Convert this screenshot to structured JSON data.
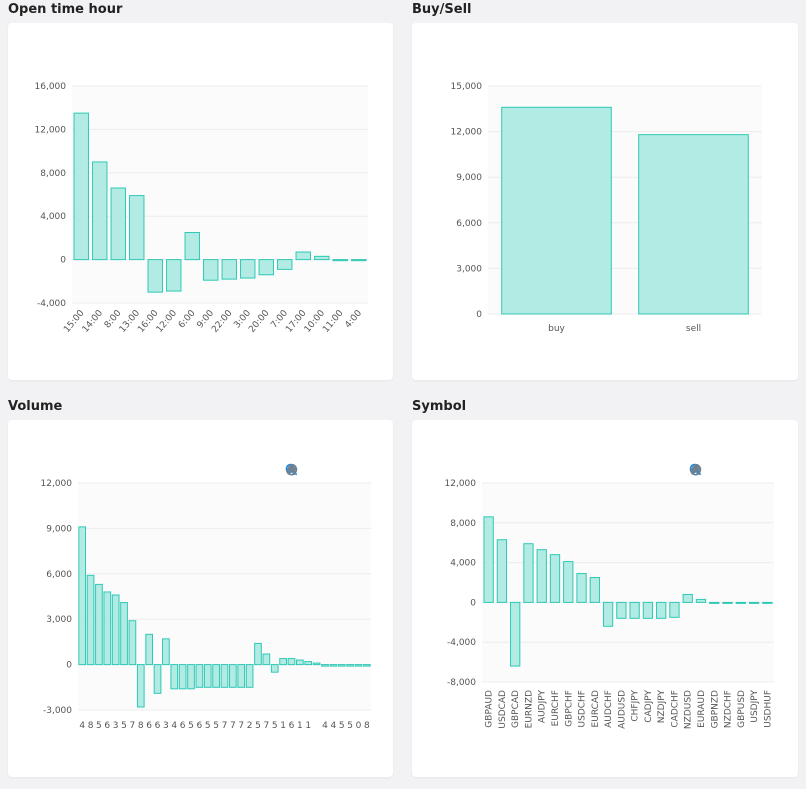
{
  "panels": [
    {
      "title": "Open time hour"
    },
    {
      "title": "Buy/Sell"
    },
    {
      "title": "Volume"
    },
    {
      "title": "Symbol"
    }
  ],
  "toolbar_icons": [
    "zoom-in-icon",
    "zoom-out-icon",
    "zoom-select-icon",
    "pan-icon",
    "home-icon"
  ],
  "colors": {
    "bar_fill": "#b2ebe3",
    "bar_stroke": "#2ec9b5"
  },
  "chart_data": [
    {
      "type": "bar",
      "categories": [
        "15:00",
        "14:00",
        "8:00",
        "13:00",
        "16:00",
        "12:00",
        "6:00",
        "9:00",
        "22:00",
        "3:00",
        "20:00",
        "7:00",
        "17:00",
        "10:00",
        "11:00",
        "4:00"
      ],
      "values": [
        13500,
        9000,
        6600,
        5900,
        -3000,
        -2900,
        2500,
        -1900,
        -1800,
        -1700,
        -1400,
        -900,
        700,
        300,
        -100,
        -100
      ],
      "ylim": [
        -4000,
        16000
      ],
      "yticks": [
        16000,
        12000,
        8000,
        4000,
        0,
        -4000
      ],
      "ytick_labels": [
        "16,000",
        "12,000",
        "8,000",
        "4,000",
        "0",
        "-4,000"
      ],
      "grid": true
    },
    {
      "type": "bar",
      "categories": [
        "buy",
        "sell"
      ],
      "values": [
        13600,
        11800
      ],
      "ylim": [
        0,
        15000
      ],
      "yticks": [
        15000,
        12000,
        9000,
        6000,
        3000,
        0
      ],
      "ytick_labels": [
        "15,000",
        "12,000",
        "9,000",
        "6,000",
        "3,000",
        "0"
      ],
      "grid": true
    },
    {
      "type": "bar",
      "categories": [
        "4",
        "8",
        "5",
        "6",
        "3",
        "5",
        "7",
        "8",
        "6",
        "6",
        "3",
        "4",
        "6",
        "5",
        "6",
        "5",
        "5",
        "7",
        "7",
        "7",
        "2",
        "5",
        "7",
        "5",
        "1",
        "6",
        "1",
        "1",
        "",
        "4",
        "4",
        "5",
        "5",
        "0",
        "8"
      ],
      "values": [
        9100,
        5900,
        5300,
        4800,
        4600,
        4100,
        2900,
        -2800,
        2000,
        -1900,
        1700,
        -1600,
        -1600,
        -1600,
        -1500,
        -1500,
        -1500,
        -1500,
        -1500,
        -1500,
        -1500,
        1400,
        700,
        -500,
        400,
        400,
        300,
        200,
        100,
        -100,
        -100,
        -100,
        -100,
        -100,
        -100
      ],
      "ylim": [
        -3000,
        12000
      ],
      "yticks": [
        12000,
        9000,
        6000,
        3000,
        0,
        -3000
      ],
      "ytick_labels": [
        "12,000",
        "9,000",
        "6,000",
        "3,000",
        "0",
        "-3,000"
      ],
      "grid": true
    },
    {
      "type": "bar",
      "categories": [
        "GBPAUD",
        "USDCAD",
        "GBPCAD",
        "EURNZD",
        "AUDJPY",
        "EURCHF",
        "GBPCHF",
        "USDCHF",
        "EURCAD",
        "AUDCHF",
        "AUDUSD",
        "CHFJPY",
        "CADJPY",
        "NZDJPY",
        "CADCHF",
        "NZDUSD",
        "EURAUD",
        "GBPNZD",
        "NZDCHF",
        "GBPUSD",
        "USDJPY",
        "USDHUF"
      ],
      "values": [
        8600,
        6300,
        -6400,
        5900,
        5300,
        4800,
        4100,
        2900,
        2500,
        -2400,
        -1600,
        -1600,
        -1600,
        -1600,
        -1500,
        800,
        300,
        -100,
        -100,
        -100,
        -100,
        -100
      ],
      "ylim": [
        -8000,
        12000
      ],
      "yticks": [
        12000,
        8000,
        4000,
        0,
        -4000,
        -8000
      ],
      "ytick_labels": [
        "12,000",
        "8,000",
        "4,000",
        "0",
        "-4,000",
        "-8,000"
      ],
      "grid": true
    }
  ]
}
